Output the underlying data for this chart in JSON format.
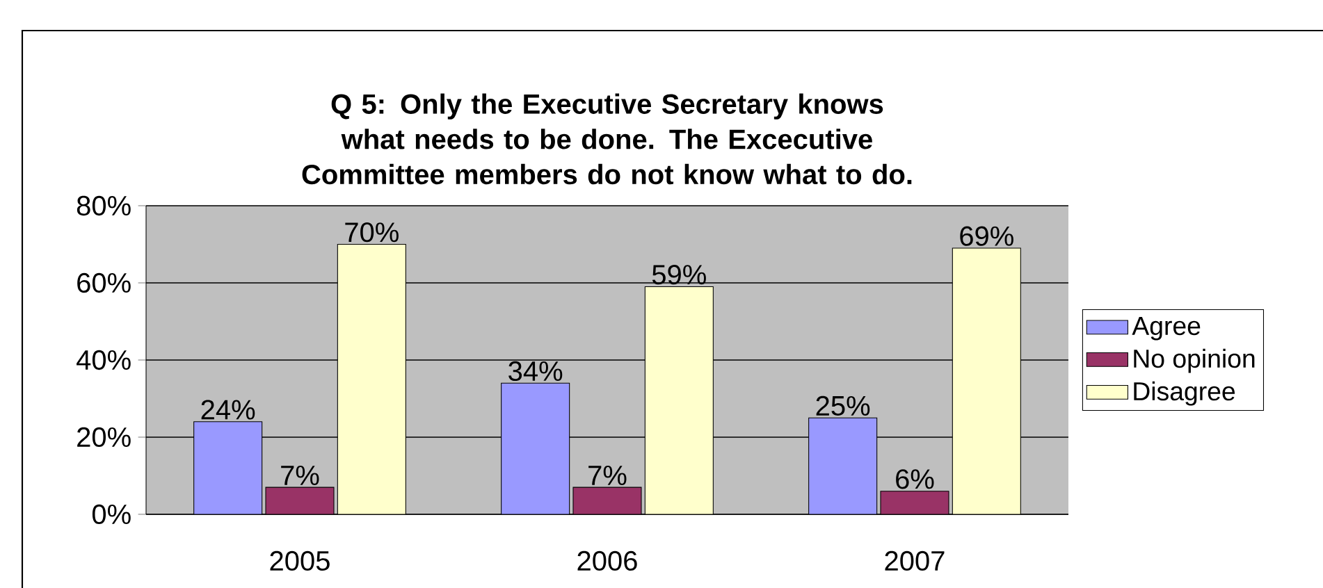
{
  "chart_data": {
    "type": "bar",
    "title": "Q 5: Only the Executive Secretary knows what needs to be done. The Excecutive Committee members do not know what to do.",
    "categories": [
      "2005",
      "2006",
      "2007"
    ],
    "series": [
      {
        "name": "Agree",
        "color": "#9999ff",
        "values": [
          24,
          34,
          25
        ],
        "value_labels": [
          "24%",
          "34%",
          "25%"
        ]
      },
      {
        "name": "No opinion",
        "color": "#993366",
        "values": [
          7,
          7,
          6
        ],
        "value_labels": [
          "7%",
          "7%",
          "6%"
        ]
      },
      {
        "name": "Disagree",
        "color": "#ffffcc",
        "values": [
          70,
          59,
          69
        ],
        "value_labels": [
          "70%",
          "59%",
          "69%"
        ]
      }
    ],
    "ylim": [
      0,
      80
    ],
    "yticks": [
      {
        "value": 0,
        "label": "0%"
      },
      {
        "value": 20,
        "label": "20%"
      },
      {
        "value": 40,
        "label": "40%"
      },
      {
        "value": 60,
        "label": "60%"
      },
      {
        "value": 80,
        "label": "80%"
      }
    ],
    "grid": "y",
    "legend": "right"
  }
}
